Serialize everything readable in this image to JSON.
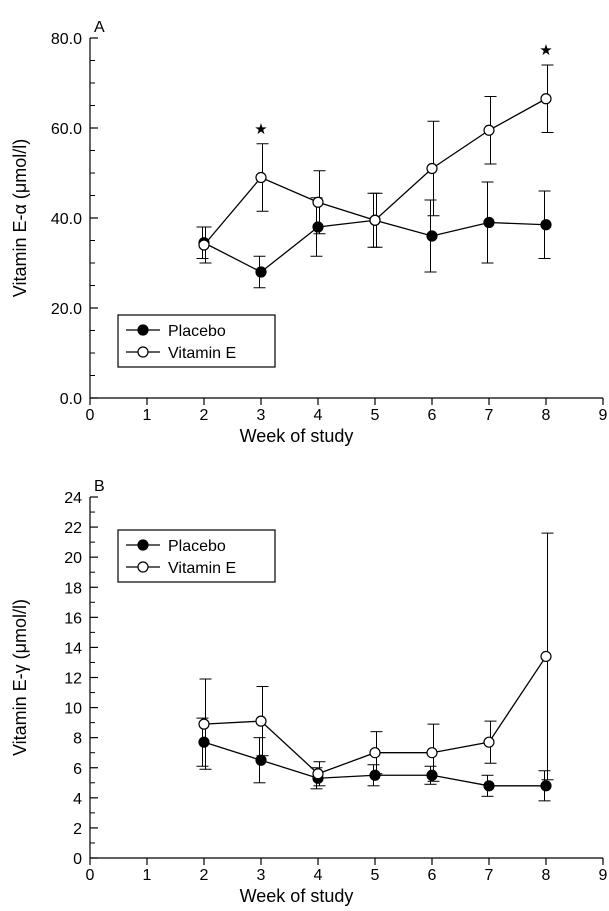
{
  "chart_data": [
    {
      "type": "line",
      "panel_label": "A",
      "xlabel": "Week of study",
      "ylabel": "Vitamin E-α (μmol/l)",
      "xlim": [
        0,
        9
      ],
      "ylim": [
        0,
        80
      ],
      "x_ticks": [
        "0",
        "1",
        "2",
        "3",
        "4",
        "5",
        "6",
        "7",
        "8",
        "9"
      ],
      "y_ticks": [
        "0.0",
        "20.0",
        "40.0",
        "60.0",
        "80.0"
      ],
      "y_tick_values": [
        0,
        20,
        40,
        60,
        80
      ],
      "legend_position": "bottom-left",
      "significance_marker": "★",
      "significant_weeks": [
        3,
        8
      ],
      "series": [
        {
          "name": "Placebo",
          "marker": "filled-circle",
          "x": [
            2,
            3,
            4,
            5,
            6,
            7,
            8
          ],
          "y": [
            34.5,
            28.0,
            38.0,
            39.5,
            36.0,
            39.0,
            38.5
          ],
          "error": [
            3.5,
            3.5,
            6.5,
            6.0,
            8.0,
            9.0,
            7.5
          ]
        },
        {
          "name": "Vitamin E",
          "marker": "open-circle",
          "x": [
            2,
            3,
            4,
            5,
            6,
            7,
            8
          ],
          "y": [
            34.0,
            49.0,
            43.5,
            39.5,
            51.0,
            59.5,
            66.5
          ],
          "error": [
            4.0,
            7.5,
            7.0,
            6.0,
            10.5,
            7.5,
            7.5
          ]
        }
      ]
    },
    {
      "type": "line",
      "panel_label": "B",
      "xlabel": "Week of study",
      "ylabel": "Vitamin E-γ (μmol/l)",
      "xlim": [
        0,
        9
      ],
      "ylim": [
        0,
        24
      ],
      "x_ticks": [
        "0",
        "1",
        "2",
        "3",
        "4",
        "5",
        "6",
        "7",
        "8",
        "9"
      ],
      "y_ticks": [
        "0",
        "2",
        "4",
        "6",
        "8",
        "10",
        "12",
        "14",
        "16",
        "18",
        "20",
        "22",
        "24"
      ],
      "y_tick_values": [
        0,
        2,
        4,
        6,
        8,
        10,
        12,
        14,
        16,
        18,
        20,
        22,
        24
      ],
      "legend_position": "top-left",
      "series": [
        {
          "name": "Placebo",
          "marker": "filled-circle",
          "x": [
            2,
            3,
            4,
            5,
            6,
            7,
            8
          ],
          "y": [
            7.7,
            6.5,
            5.3,
            5.5,
            5.5,
            4.8,
            4.8
          ],
          "error": [
            1.6,
            1.5,
            0.7,
            0.7,
            0.6,
            0.7,
            1.0
          ]
        },
        {
          "name": "Vitamin E",
          "marker": "open-circle",
          "x": [
            2,
            3,
            4,
            5,
            6,
            7,
            8
          ],
          "y": [
            8.9,
            9.1,
            5.6,
            7.0,
            7.0,
            7.7,
            13.4
          ],
          "error": [
            3.0,
            2.3,
            0.8,
            1.4,
            1.9,
            1.4,
            8.2
          ]
        }
      ]
    }
  ]
}
